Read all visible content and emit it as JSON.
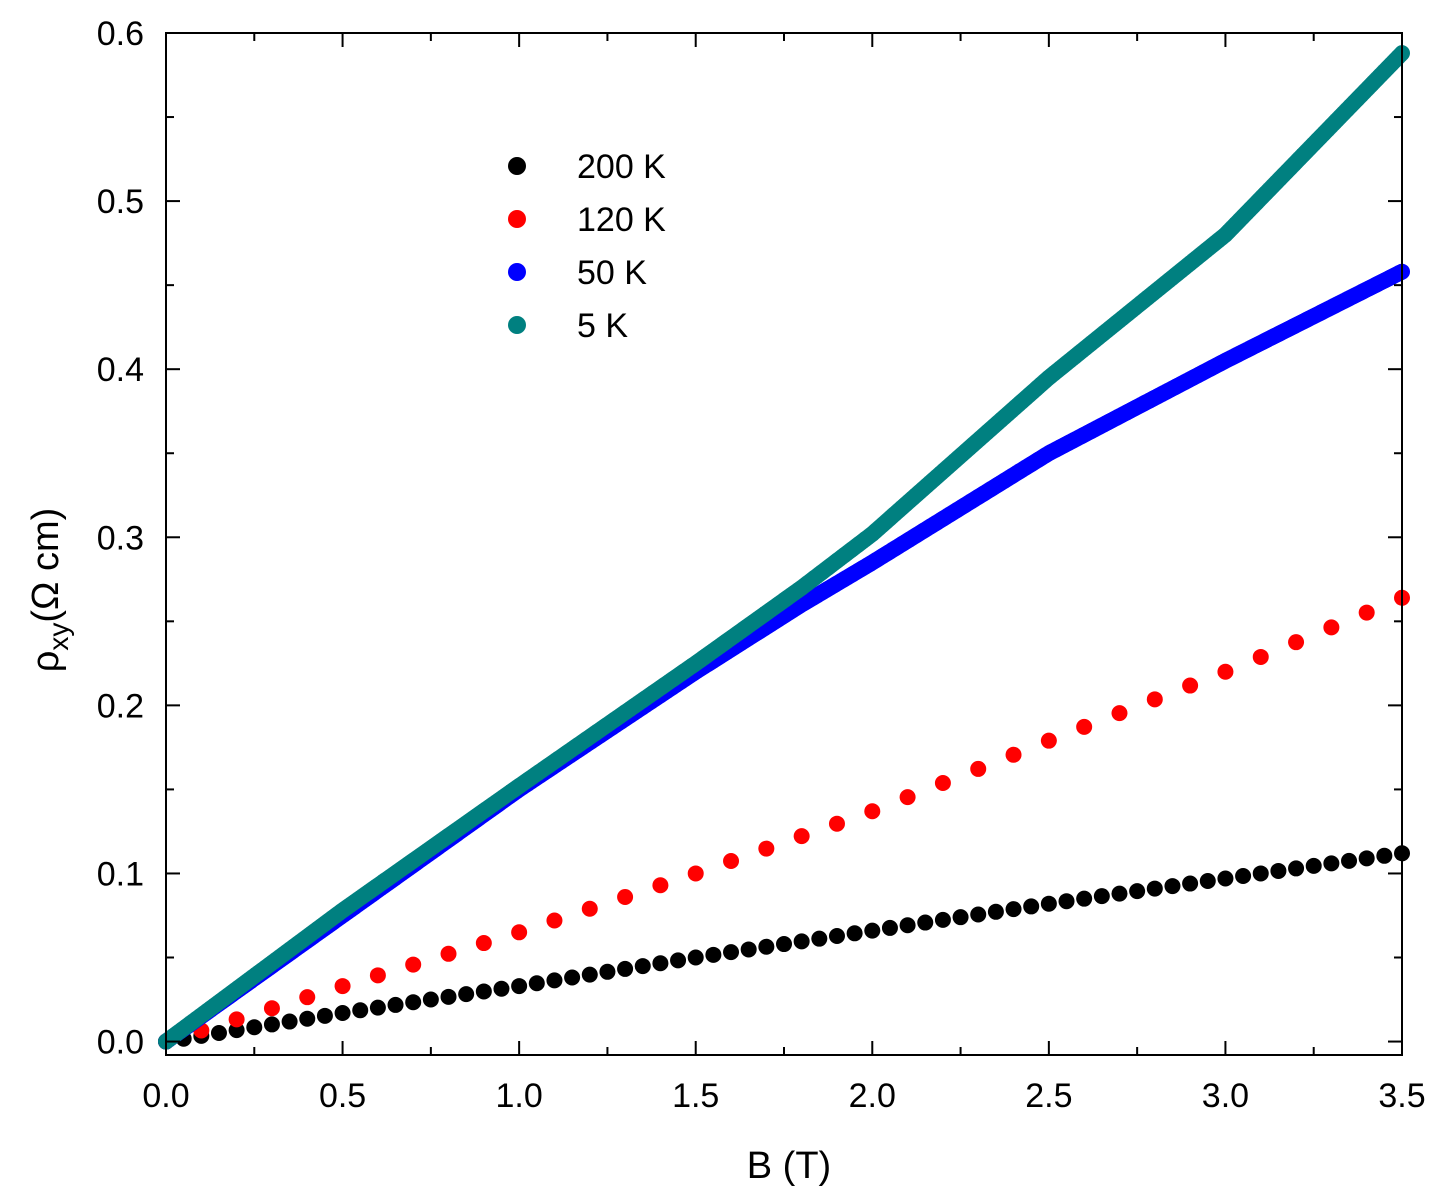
{
  "chart_data": {
    "type": "scatter",
    "xlabel": "B (T)",
    "ylabel": {
      "symbol": "ρ",
      "subscript": "xy",
      "unit": "(Ω cm)"
    },
    "xlim": [
      0,
      3.5
    ],
    "ylim": [
      -0.008,
      0.6
    ],
    "xticks": [
      0.0,
      0.5,
      1.0,
      1.5,
      2.0,
      2.5,
      3.0,
      3.5
    ],
    "xtick_labels": [
      "0.0",
      "0.5",
      "1.0",
      "1.5",
      "2.0",
      "2.5",
      "3.0",
      "3.5"
    ],
    "yticks": [
      0.0,
      0.1,
      0.2,
      0.3,
      0.4,
      0.5,
      0.6
    ],
    "ytick_labels": [
      "0.0",
      "0.1",
      "0.2",
      "0.3",
      "0.4",
      "0.5",
      "0.6"
    ],
    "grid": false,
    "legend_position": "top-center",
    "series": [
      {
        "name": "200 K",
        "color": "#000000",
        "sampling": "sparse",
        "x": [
          0.0,
          0.5,
          1.0,
          1.5,
          2.0,
          2.5,
          3.0,
          3.5
        ],
        "y": [
          0.0,
          0.017,
          0.033,
          0.05,
          0.066,
          0.082,
          0.097,
          0.112
        ]
      },
      {
        "name": "120 K",
        "color": "#ff0000",
        "sampling": "sparse",
        "x": [
          0.0,
          0.5,
          1.0,
          1.5,
          2.0,
          2.5,
          3.0,
          3.5
        ],
        "y": [
          0.0,
          0.033,
          0.065,
          0.1,
          0.137,
          0.179,
          0.22,
          0.264
        ]
      },
      {
        "name": "50 K",
        "color": "#0000ff",
        "sampling": "dense",
        "x": [
          0.0,
          0.5,
          1.0,
          1.5,
          1.8,
          2.0,
          2.5,
          3.0,
          3.5
        ],
        "y": [
          0.0,
          0.075,
          0.15,
          0.22,
          0.26,
          0.285,
          0.35,
          0.405,
          0.458
        ]
      },
      {
        "name": "5 K",
        "color": "#008080",
        "sampling": "dense",
        "x": [
          0.0,
          0.5,
          1.0,
          1.5,
          1.8,
          2.0,
          2.5,
          3.0,
          3.5
        ],
        "y": [
          0.0,
          0.078,
          0.152,
          0.225,
          0.27,
          0.302,
          0.395,
          0.48,
          0.588
        ]
      }
    ]
  }
}
